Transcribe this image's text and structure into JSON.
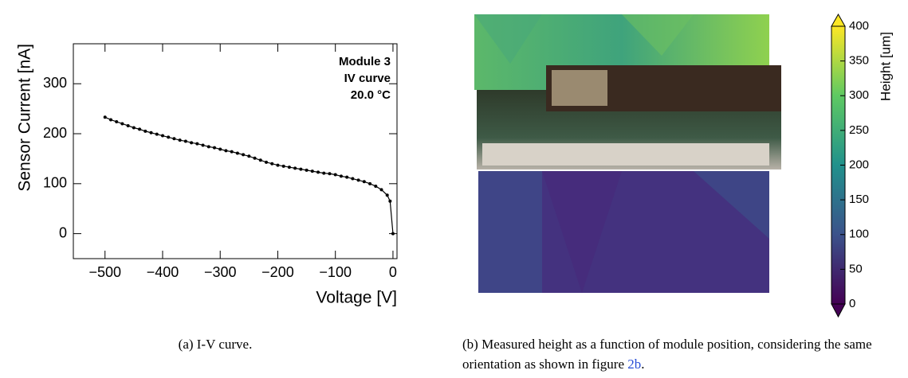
{
  "chart_data": [
    {
      "type": "line",
      "xlabel": "Voltage [V]",
      "ylabel": "Sensor Current [nA]",
      "annotations": [
        "Module 3",
        "IV curve",
        "20.0 °C"
      ],
      "color": "#000000",
      "x": [
        -500,
        -490,
        -480,
        -470,
        -460,
        -450,
        -440,
        -430,
        -420,
        -410,
        -400,
        -390,
        -380,
        -370,
        -360,
        -350,
        -340,
        -330,
        -320,
        -310,
        -300,
        -290,
        -280,
        -270,
        -260,
        -250,
        -240,
        -230,
        -220,
        -210,
        -200,
        -190,
        -180,
        -170,
        -160,
        -150,
        -140,
        -130,
        -120,
        -110,
        -100,
        -90,
        -80,
        -70,
        -60,
        -50,
        -40,
        -30,
        -20,
        -10,
        -5,
        0
      ],
      "values": [
        233,
        228,
        224,
        220,
        216,
        212,
        209,
        205,
        202,
        199,
        196,
        193,
        190,
        187,
        185,
        182,
        180,
        177,
        174,
        172,
        169,
        166,
        164,
        161,
        158,
        155,
        151,
        147,
        143,
        140,
        137,
        135,
        133,
        131,
        129,
        127,
        125,
        123,
        121,
        120,
        118,
        115,
        113,
        110,
        107,
        104,
        100,
        95,
        88,
        77,
        65,
        0
      ],
      "xlim": [
        -555,
        7
      ],
      "ylim": [
        -50,
        380
      ],
      "xticks": [
        {
          "value": -500,
          "label": "−500"
        },
        {
          "value": -400,
          "label": "−400"
        },
        {
          "value": -300,
          "label": "−300"
        },
        {
          "value": -200,
          "label": "−200"
        },
        {
          "value": -100,
          "label": "−100"
        },
        0
      ],
      "yticks": [
        0,
        100,
        200,
        300
      ]
    },
    {
      "type": "colorbar",
      "label": "Height [um]",
      "ylim": [
        0,
        400
      ],
      "yticks": [
        0,
        50,
        100,
        150,
        200,
        250,
        300,
        350,
        400
      ]
    }
  ],
  "captions": [
    {
      "text": "(a) I-V curve."
    },
    {
      "text": "(b) Measured height as a function of module position, considering the same orientation as shown in figure",
      "ref": "2b",
      "end": "."
    }
  ]
}
